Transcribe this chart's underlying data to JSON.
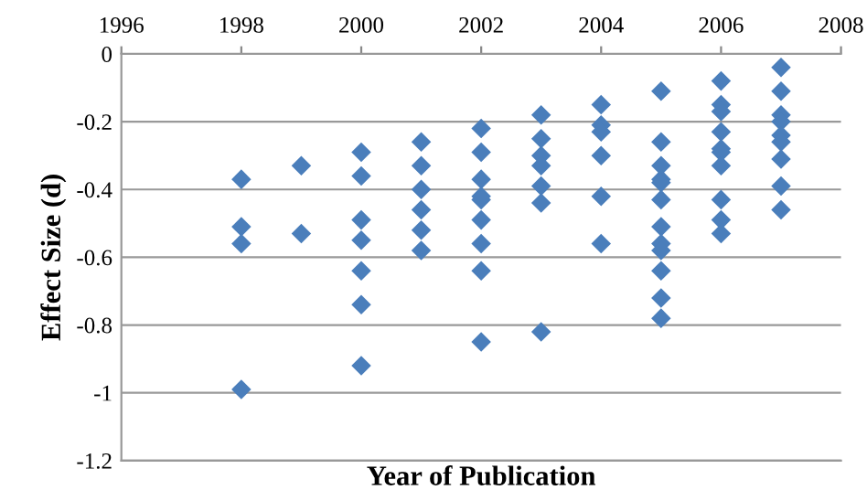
{
  "chart_data": {
    "type": "scatter",
    "xlabel": "Year of Publication",
    "ylabel": "Effect Size (d)",
    "x": [
      1998,
      1998,
      1998,
      1998,
      1999,
      1999,
      2000,
      2000,
      2000,
      2000,
      2000,
      2000,
      2000,
      2001,
      2001,
      2001,
      2001,
      2001,
      2001,
      2002,
      2002,
      2002,
      2002,
      2002,
      2002,
      2002,
      2002,
      2002,
      2003,
      2003,
      2003,
      2003,
      2003,
      2003,
      2003,
      2004,
      2004,
      2004,
      2004,
      2004,
      2004,
      2005,
      2005,
      2005,
      2005,
      2005,
      2005,
      2005,
      2005,
      2005,
      2005,
      2005,
      2005,
      2006,
      2006,
      2006,
      2006,
      2006,
      2006,
      2006,
      2006,
      2006,
      2006,
      2007,
      2007,
      2007,
      2007,
      2007,
      2007,
      2007,
      2007,
      2007
    ],
    "series": [
      {
        "color": "#4a7ebb",
        "values": [
          -0.37,
          -0.51,
          -0.56,
          -0.99,
          -0.33,
          -0.53,
          -0.29,
          -0.36,
          -0.49,
          -0.55,
          -0.64,
          -0.74,
          -0.92,
          -0.26,
          -0.33,
          -0.4,
          -0.46,
          -0.52,
          -0.58,
          -0.22,
          -0.29,
          -0.37,
          -0.42,
          -0.43,
          -0.49,
          -0.56,
          -0.64,
          -0.85,
          -0.18,
          -0.25,
          -0.3,
          -0.33,
          -0.39,
          -0.44,
          -0.82,
          -0.15,
          -0.21,
          -0.23,
          -0.3,
          -0.42,
          -0.56,
          -0.11,
          -0.26,
          -0.33,
          -0.37,
          -0.38,
          -0.43,
          -0.51,
          -0.56,
          -0.58,
          -0.64,
          -0.72,
          -0.78,
          -0.08,
          -0.15,
          -0.17,
          -0.23,
          -0.28,
          -0.29,
          -0.33,
          -0.43,
          -0.49,
          -0.53,
          -0.04,
          -0.11,
          -0.18,
          -0.2,
          -0.24,
          -0.26,
          -0.31,
          -0.39,
          -0.46
        ]
      }
    ],
    "xlim": [
      1996,
      2008
    ],
    "xticks": [
      1996,
      1998,
      2000,
      2002,
      2004,
      2006,
      2008
    ],
    "ylim": [
      -1.2,
      0
    ],
    "yticks": [
      -1.2,
      -1,
      -0.8,
      -0.6,
      -0.4,
      -0.2,
      0
    ],
    "grid": "y",
    "marker": "diamond",
    "legend": false
  }
}
